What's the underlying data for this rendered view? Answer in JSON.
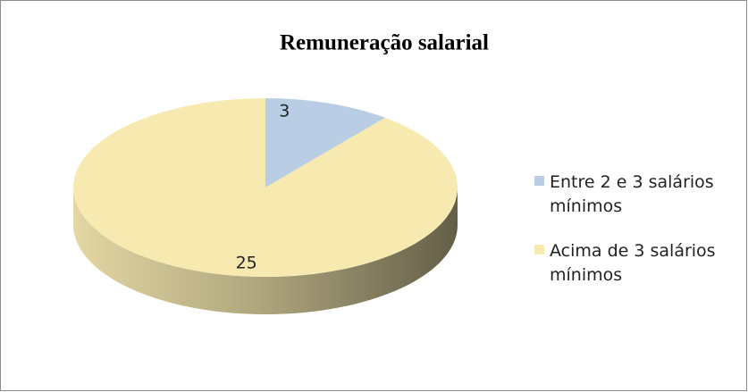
{
  "chart_data": {
    "type": "pie",
    "title": "Remuneração salarial",
    "categories": [
      "Entre 2 e 3 salários mínimos",
      "Acima de 3 salários mínimos"
    ],
    "values": [
      3,
      25
    ],
    "colors": [
      "#b9cde5",
      "#f7eab1"
    ]
  }
}
